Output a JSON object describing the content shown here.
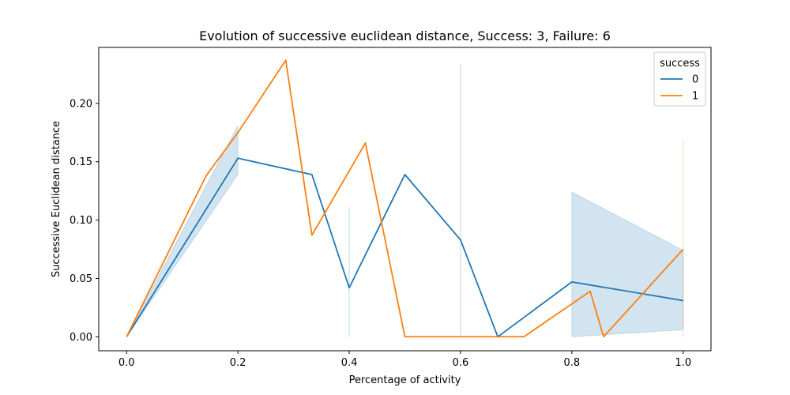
{
  "chart_data": {
    "type": "line",
    "title": "Evolution of successive euclidean distance, Success: 3, Failure: 6",
    "xlabel": "Percentage of activity",
    "ylabel": "Successive Euclidean distance",
    "xlim": [
      -0.05,
      1.05
    ],
    "ylim": [
      -0.012,
      0.248
    ],
    "xticks": [
      0.0,
      0.2,
      0.4,
      0.6,
      0.8,
      1.0
    ],
    "xtick_labels": [
      "0.0",
      "0.2",
      "0.4",
      "0.6",
      "0.8",
      "1.0"
    ],
    "yticks": [
      0.0,
      0.05,
      0.1,
      0.15,
      0.2
    ],
    "ytick_labels": [
      "0.00",
      "0.05",
      "0.10",
      "0.15",
      "0.20"
    ],
    "grid": false,
    "legend": {
      "title": "success",
      "placement": "top-right",
      "entries": [
        "0",
        "1"
      ]
    },
    "series": [
      {
        "name": "0",
        "color": "#1f77b4",
        "x": [
          0.0,
          0.2,
          0.333,
          0.4,
          0.5,
          0.6,
          0.667,
          0.8,
          1.0
        ],
        "y": [
          0.0,
          0.153,
          0.139,
          0.042,
          0.139,
          0.083,
          0.0,
          0.047,
          0.031
        ],
        "ci": [
          {
            "x": [
              0.0,
              0.2
            ],
            "lower": [
              0.0,
              0.139
            ],
            "upper": [
              0.0,
              0.181
            ]
          },
          {
            "x": [
              0.4
            ],
            "lower": [
              0.0
            ],
            "upper": [
              0.111
            ]
          },
          {
            "x": [
              0.6
            ],
            "lower": [
              0.0
            ],
            "upper": [
              0.234
            ]
          },
          {
            "x": [
              0.8,
              1.0
            ],
            "lower": [
              0.0,
              0.006
            ],
            "upper": [
              0.124,
              0.074
            ]
          }
        ]
      },
      {
        "name": "1",
        "color": "#ff7f0e",
        "x": [
          0.0,
          0.143,
          0.2,
          0.286,
          0.333,
          0.429,
          0.5,
          0.571,
          0.667,
          0.714,
          0.833,
          0.857,
          1.0
        ],
        "y": [
          0.0,
          0.138,
          0.175,
          0.237,
          0.087,
          0.166,
          0.0,
          0.0,
          0.0,
          0.0,
          0.039,
          0.0,
          0.075
        ],
        "ci": [
          {
            "x": [
              1.0
            ],
            "lower": [
              0.0
            ],
            "upper": [
              0.169
            ]
          }
        ]
      }
    ]
  }
}
